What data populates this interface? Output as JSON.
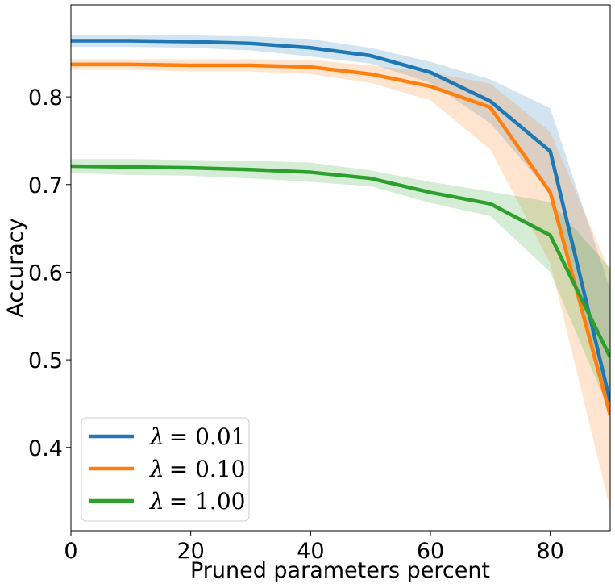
{
  "chart_data": {
    "type": "line",
    "title": "",
    "xlabel": "Pruned parameters percent",
    "ylabel": "Accuracy",
    "xlim": [
      0,
      90
    ],
    "ylim": [
      0.305,
      0.905
    ],
    "xticks": [
      0,
      20,
      40,
      60,
      80
    ],
    "yticks": [
      0.4,
      0.5,
      0.6,
      0.7,
      0.8
    ],
    "grid": false,
    "legend_position": "lower-left",
    "x": [
      0,
      10,
      20,
      30,
      40,
      50,
      60,
      70,
      80,
      90
    ],
    "series": [
      {
        "name": "λ = 0.01",
        "color": "#1f77b4",
        "values": [
          0.864,
          0.864,
          0.863,
          0.861,
          0.856,
          0.847,
          0.828,
          0.795,
          0.738,
          0.452
        ],
        "upper": [
          0.871,
          0.871,
          0.87,
          0.869,
          0.866,
          0.856,
          0.84,
          0.82,
          0.787,
          0.58
        ],
        "lower": [
          0.857,
          0.857,
          0.856,
          0.853,
          0.846,
          0.838,
          0.816,
          0.77,
          0.69,
          0.44
        ]
      },
      {
        "name": "λ = 0.10",
        "color": "#ff7f0e",
        "values": [
          0.837,
          0.837,
          0.836,
          0.836,
          0.834,
          0.826,
          0.812,
          0.788,
          0.691,
          0.437
        ],
        "upper": [
          0.843,
          0.843,
          0.843,
          0.843,
          0.842,
          0.836,
          0.828,
          0.815,
          0.76,
          0.6
        ],
        "lower": [
          0.831,
          0.831,
          0.829,
          0.829,
          0.826,
          0.816,
          0.796,
          0.74,
          0.61,
          0.33
        ]
      },
      {
        "name": "λ = 1.00",
        "color": "#2ca02c",
        "values": [
          0.721,
          0.72,
          0.719,
          0.717,
          0.714,
          0.707,
          0.691,
          0.678,
          0.642,
          0.503
        ],
        "upper": [
          0.729,
          0.729,
          0.728,
          0.727,
          0.725,
          0.716,
          0.703,
          0.692,
          0.68,
          0.605
        ],
        "lower": [
          0.713,
          0.711,
          0.71,
          0.707,
          0.703,
          0.698,
          0.679,
          0.664,
          0.6,
          0.44
        ]
      }
    ],
    "legend_entries": [
      {
        "symbol": "λ",
        "text": "= 0.01"
      },
      {
        "symbol": "λ",
        "text": "= 0.10"
      },
      {
        "symbol": "λ",
        "text": "= 1.00"
      }
    ]
  }
}
